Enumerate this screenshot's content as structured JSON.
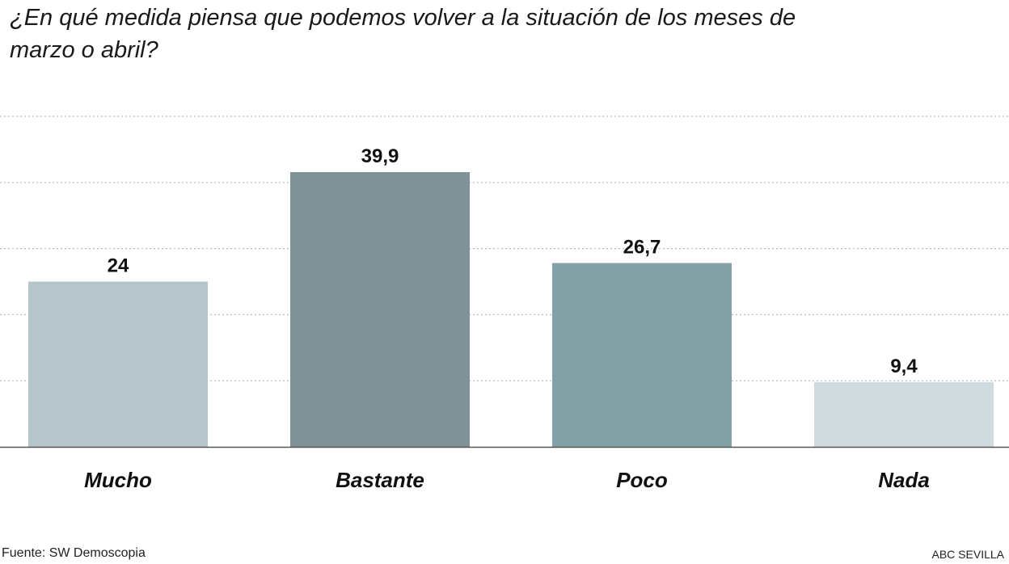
{
  "chart_data": {
    "type": "bar",
    "title": "¿En qué medida piensa que podemos volver a la situación de los meses de marzo o abril?",
    "categories": [
      "Mucho",
      "Bastante",
      "Poco",
      "Nada"
    ],
    "values": [
      24,
      39.9,
      26.7,
      9.4
    ],
    "value_labels": [
      "24",
      "39,9",
      "26,7",
      "9,4"
    ],
    "bar_colors": [
      "#b5c5cb",
      "#809295",
      "#84a1a7",
      "#cfdbdf"
    ],
    "ylim": [
      0,
      48
    ],
    "grid": true,
    "gridline_values": [
      9.6,
      19.2,
      28.8,
      38.4,
      48
    ],
    "xlabel": "",
    "ylabel": ""
  },
  "footer": {
    "source": "Fuente: SW Demoscopia",
    "credit": "ABC SEVILLA"
  },
  "colors": {
    "gridline": "#b8b8b8",
    "baseline": "#555555"
  }
}
